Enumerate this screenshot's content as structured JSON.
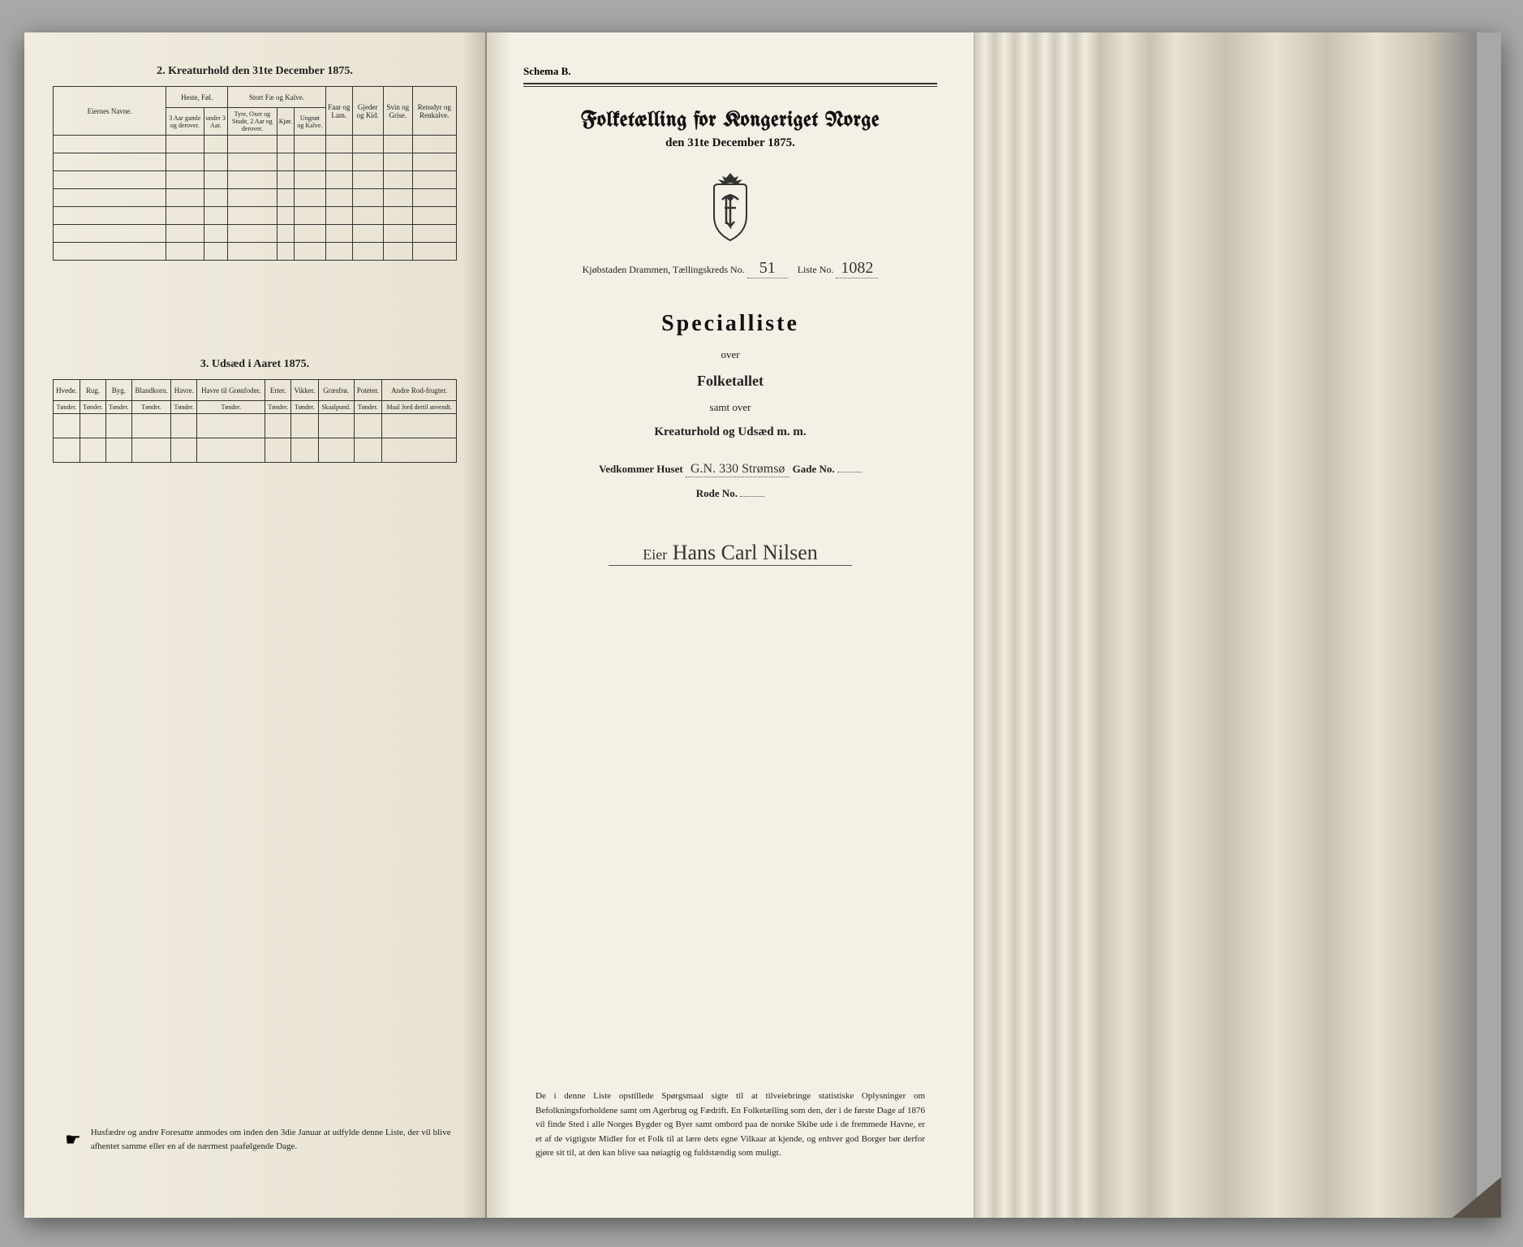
{
  "left": {
    "section2_title": "2. Kreaturhold den 31te December 1875.",
    "table1": {
      "col_navne": "Eiernes Navne.",
      "grp_heste": "Heste, Føl.",
      "grp_storfe": "Stort Fæ og Kalve.",
      "col_faar": "Faar og Lam.",
      "col_gjeder": "Gjeder og Kid.",
      "col_svin": "Svin og Grise.",
      "col_rensdyr": "Rensdyr og Renkalve.",
      "sub_heste1": "3 Aar gamle og derover.",
      "sub_heste2": "under 3 Aar.",
      "sub_fe1": "Tyre, Oxer og Stude, 2 Aar og derover.",
      "sub_fe2": "Kjør.",
      "sub_fe3": "Ungnøt og Kalve."
    },
    "section3_title": "3. Udsæd i Aaret 1875.",
    "table2": {
      "cols": [
        "Hvede.",
        "Rug.",
        "Byg.",
        "Blandkorn.",
        "Havre.",
        "Havre til Grønfoder.",
        "Erter.",
        "Vikker.",
        "Græsfrø.",
        "Poteter.",
        "Andre Rod-frugter."
      ],
      "units": [
        "Tønder.",
        "Tønder.",
        "Tønder.",
        "Tønder.",
        "Tønder.",
        "Tønder.",
        "Tønder.",
        "Tønder.",
        "Skaalpund.",
        "Tønder.",
        "Maal Jord dertil anvendt."
      ]
    },
    "footer": "Husfædre og andre Foresatte anmodes om inden den 3die Januar at udfylde denne Liste, der vil blive afhentet samme eller en af de nærmest paafølgende Dage."
  },
  "right": {
    "schema": "Schema B.",
    "title": "Folketælling for Kongeriget Norge",
    "date": "den 31te December 1875.",
    "town_label": "Kjøbstaden Drammen,   Tællingskreds No.",
    "kreds_no": "51",
    "liste_label": "Liste No.",
    "liste_no": "1082",
    "special": "Specialliste",
    "over": "over",
    "folketallet": "Folketallet",
    "samt": "samt over",
    "kreatur": "Kreaturhold og Udsæd m. m.",
    "vedkommer": "Vedkommer Huset",
    "huset_val": "G.N. 330 Strømsø",
    "gade": "Gade No.",
    "rode": "Rode No.",
    "owner_prefix": "Eier",
    "owner": "Hans Carl Nilsen",
    "bottom": "De i denne Liste opstillede Spørgsmaal sigte til at tilveiebringe statistiske Oplysninger om Befolkningsforholdene samt om Agerbrug og Fædrift. En Folketælling som den, der i de første Dage af 1876 vil finde Sted i alle Norges Bygder og Byer samt ombord paa de norske Skibe ude i de fremmede Havne, er et af de vigtigste Midler for et Folk til at lære dets egne Vilkaar at kjende, og enhver god Borger bør derfor gjøre sit til, at den kan blive saa nøiagtig og fuldstændig som muligt."
  }
}
